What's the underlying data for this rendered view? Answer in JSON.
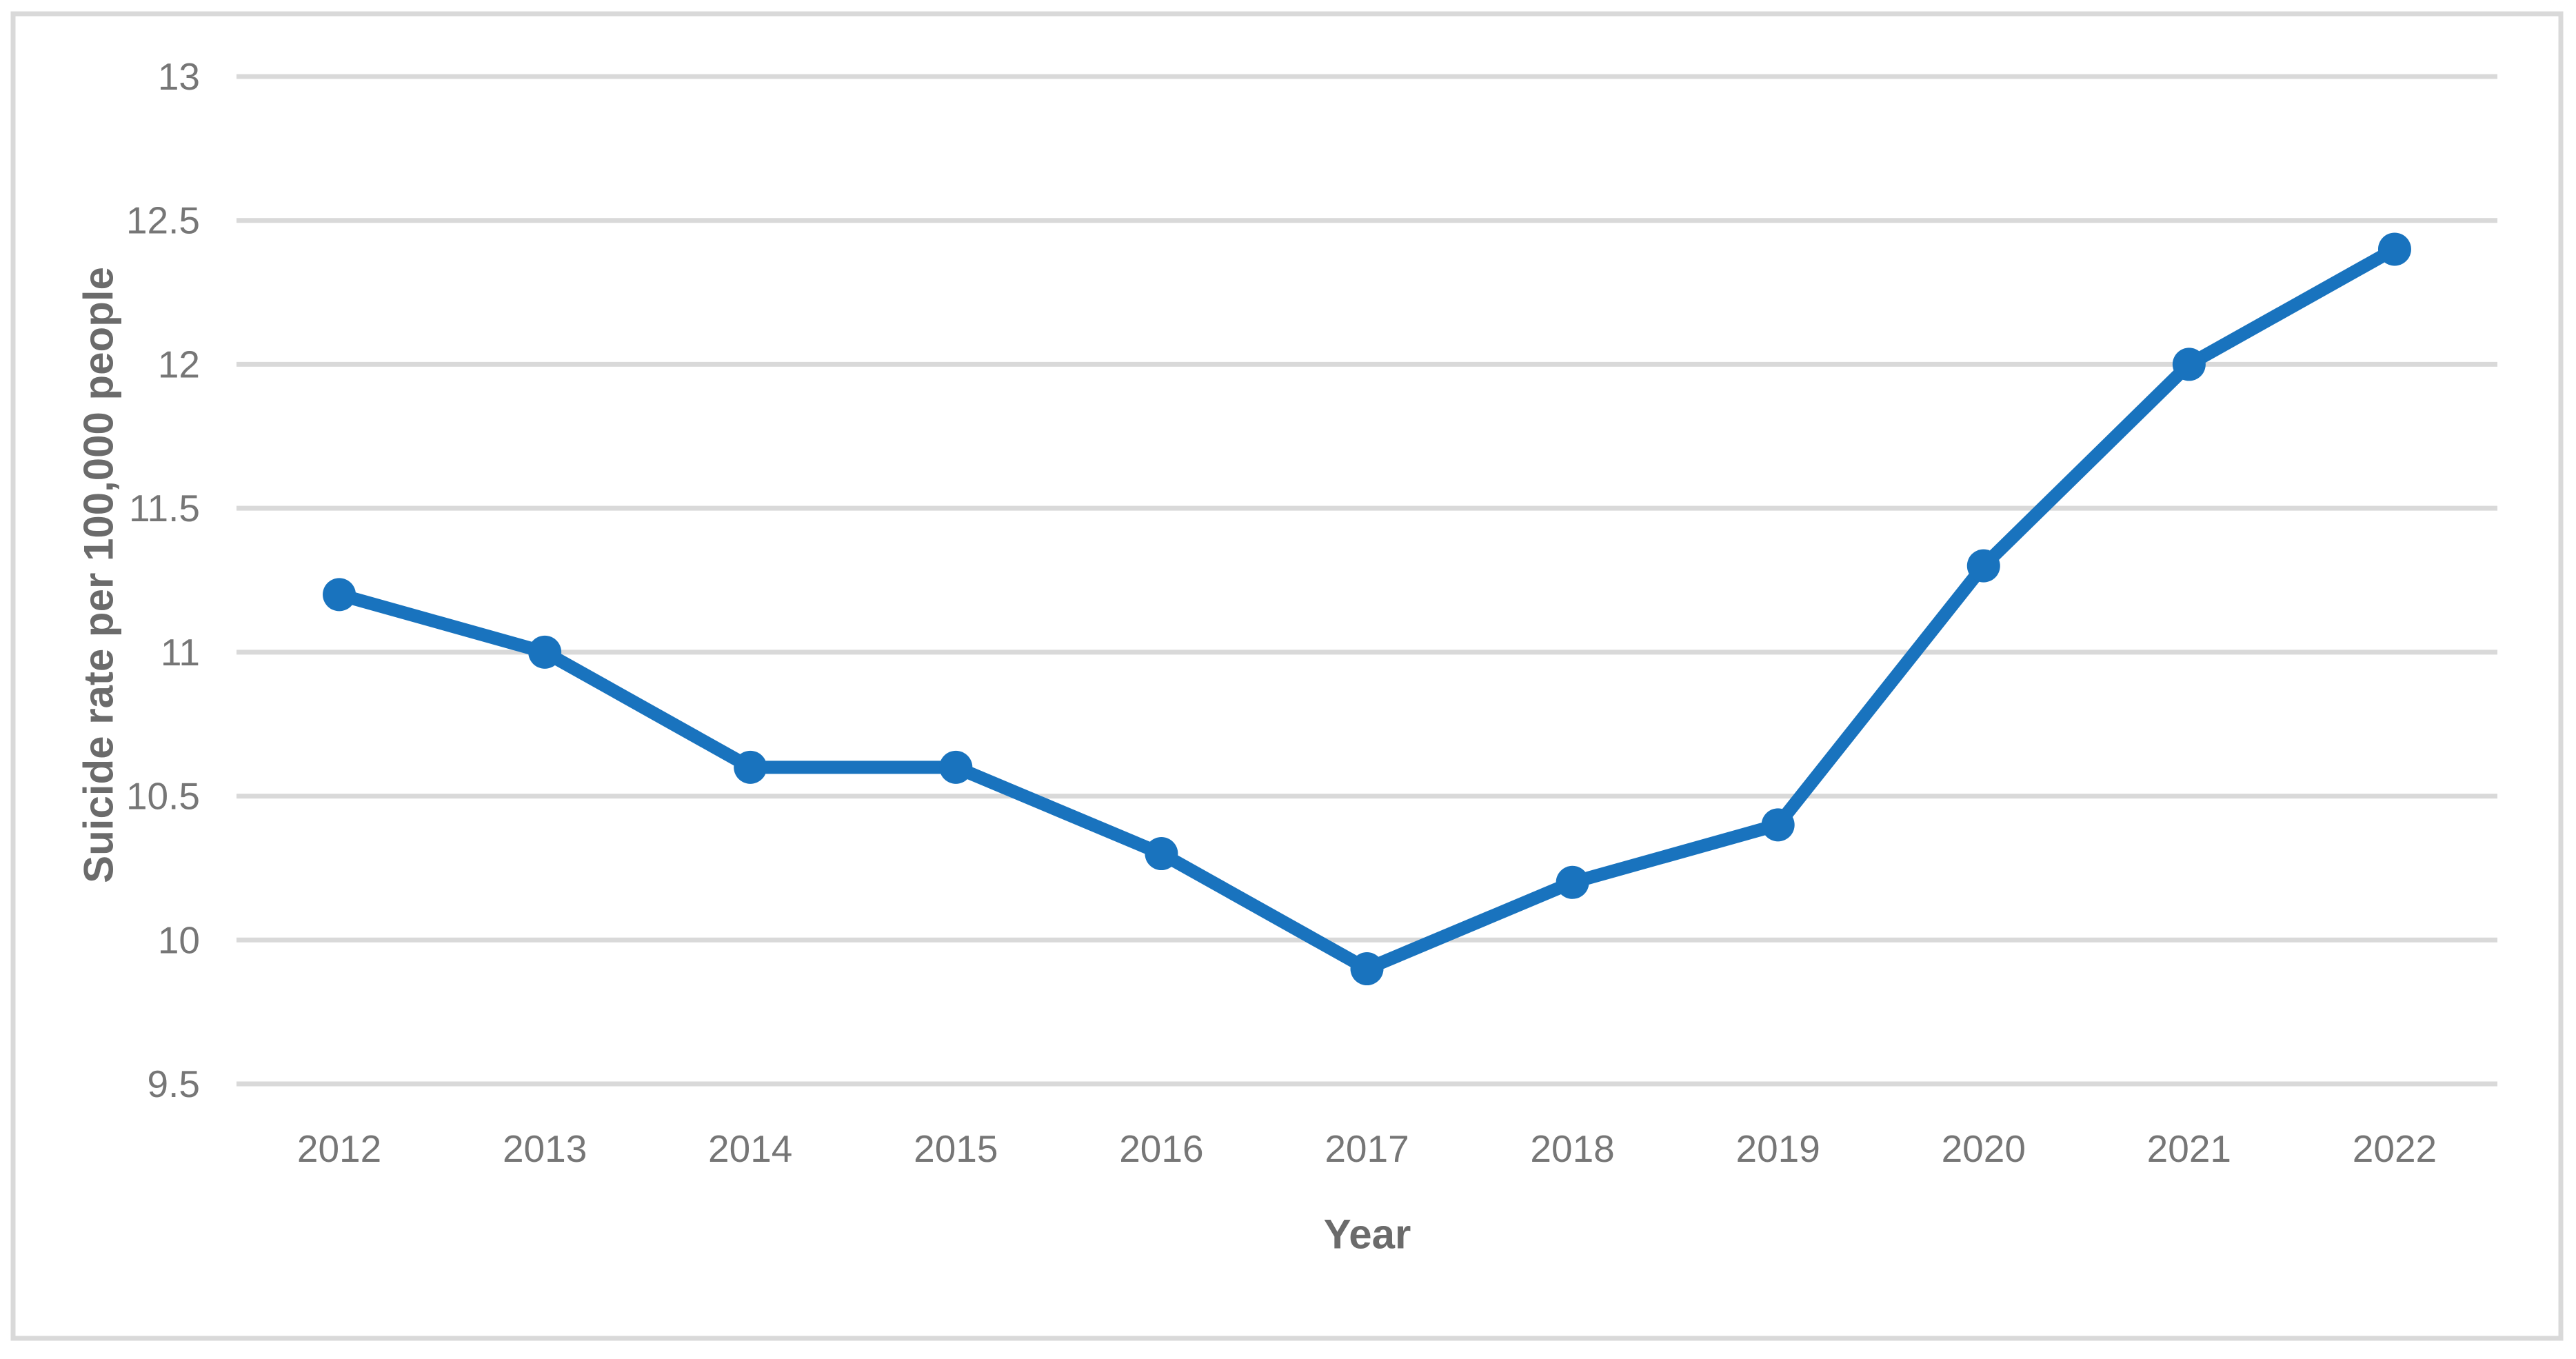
{
  "figure": {
    "background_color": "#ffffff",
    "border_color": "#D9D9D9"
  },
  "colors": {
    "line": "#1973BE",
    "marker": "#1973BE",
    "gridline": "#D9D9D9",
    "tick_label": "#767676",
    "axis_title": "#6B6B6B"
  },
  "chart_data": {
    "type": "line",
    "title": "",
    "xlabel": "Year",
    "ylabel": "Suicide rate per 100,000 people",
    "categories": [
      "2012",
      "2013",
      "2014",
      "2015",
      "2016",
      "2017",
      "2018",
      "2019",
      "2020",
      "2021",
      "2022"
    ],
    "series": [
      {
        "name": "Suicide rate per 100,000 people",
        "values": [
          11.2,
          11.0,
          10.6,
          10.6,
          10.3,
          9.9,
          10.2,
          10.4,
          11.3,
          12.0,
          12.4
        ]
      }
    ],
    "ylim": [
      9.5,
      13
    ],
    "ytick_step": 0.5,
    "yticks": [
      {
        "value": 13,
        "label": "13"
      },
      {
        "value": 12.5,
        "label": "12.5"
      },
      {
        "value": 12,
        "label": "12"
      },
      {
        "value": 11.5,
        "label": "11.5"
      },
      {
        "value": 11,
        "label": "11"
      },
      {
        "value": 10.5,
        "label": "10.5"
      },
      {
        "value": 10,
        "label": "10"
      },
      {
        "value": 9.5,
        "label": "9.5"
      }
    ],
    "grid": "horizontal",
    "legend": "none",
    "marker": "circle"
  }
}
